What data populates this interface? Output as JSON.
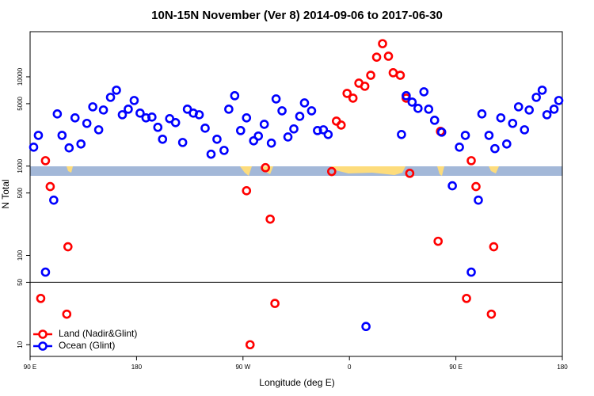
{
  "chart_data": {
    "type": "scatter",
    "title": "10N-15N November (Ver 8)   2014-09-06 to 2017-06-30",
    "x_label": "Longitude (deg E)",
    "y_label": "N Total",
    "xlim": [
      90,
      540
    ],
    "xticks": [
      {
        "value": 90,
        "label": "90 E"
      },
      180,
      {
        "value": 270,
        "label": "90 W"
      },
      {
        "value": 360,
        "label": "0"
      },
      {
        "value": 450,
        "label": "90 E"
      },
      {
        "value": 540,
        "label": "180"
      }
    ],
    "ylim": [
      7.4,
      32000
    ],
    "ylog": true,
    "yticks": [
      10,
      50,
      100,
      500,
      1000,
      5000,
      10000
    ],
    "legend": "bottom-left",
    "series": [
      {
        "name": "Land (Nadir&Glint)",
        "color": "#ff0000",
        "x": [
          99,
          103,
          107,
          121,
          122,
          273,
          276,
          289,
          293,
          297,
          345,
          349,
          353,
          358,
          363,
          368,
          373,
          378,
          383,
          388,
          393,
          397,
          403,
          408,
          411,
          435,
          437,
          459,
          463,
          467,
          480,
          482
        ],
        "values": [
          33,
          1150,
          590,
          22,
          125,
          530,
          10,
          960,
          255,
          29,
          870,
          3190,
          2880,
          6520,
          5770,
          8490,
          7840,
          10400,
          16600,
          23500,
          17000,
          11100,
          10400,
          5770,
          830,
          144,
          2450,
          33,
          1150,
          590,
          22,
          125
        ]
      },
      {
        "name": "Ocean (Glint)",
        "color": "#0000ff",
        "x": [
          93,
          97,
          103,
          110,
          113,
          117,
          123,
          128,
          133,
          138,
          143,
          148,
          152,
          158,
          163,
          168,
          173,
          178,
          183,
          188,
          193,
          198,
          202,
          208,
          213,
          219,
          223,
          228,
          233,
          238,
          243,
          248,
          254,
          258,
          263,
          268,
          273,
          279,
          283,
          288,
          294,
          298,
          303,
          308,
          313,
          318,
          322,
          328,
          333,
          338,
          342,
          374,
          404,
          408,
          413,
          418,
          423,
          427,
          432,
          438,
          447,
          453,
          458,
          463,
          469,
          472,
          478,
          483,
          488,
          493,
          498,
          503,
          508,
          512,
          518,
          523,
          527,
          533,
          537
        ],
        "values": [
          1630,
          2210,
          65,
          416,
          3840,
          2210,
          1600,
          3470,
          1770,
          3010,
          4610,
          2550,
          4250,
          5890,
          7080,
          3760,
          4340,
          5430,
          3920,
          3470,
          3540,
          2720,
          2000,
          3400,
          3070,
          1840,
          4340,
          3920,
          3760,
          2660,
          1360,
          2000,
          1500,
          4340,
          6140,
          2500,
          3470,
          1920,
          2170,
          2940,
          1810,
          5650,
          4160,
          2120,
          2610,
          3610,
          5100,
          4160,
          2500,
          2550,
          2260,
          16,
          2260,
          6140,
          5210,
          4430,
          6790,
          4340,
          3260,
          2400,
          602,
          1630,
          2210,
          65,
          416,
          3840,
          2210,
          1570,
          3470,
          1770,
          3010,
          4610,
          2550,
          4250,
          5890,
          7080,
          3760,
          4340,
          5430
        ]
      }
    ]
  }
}
